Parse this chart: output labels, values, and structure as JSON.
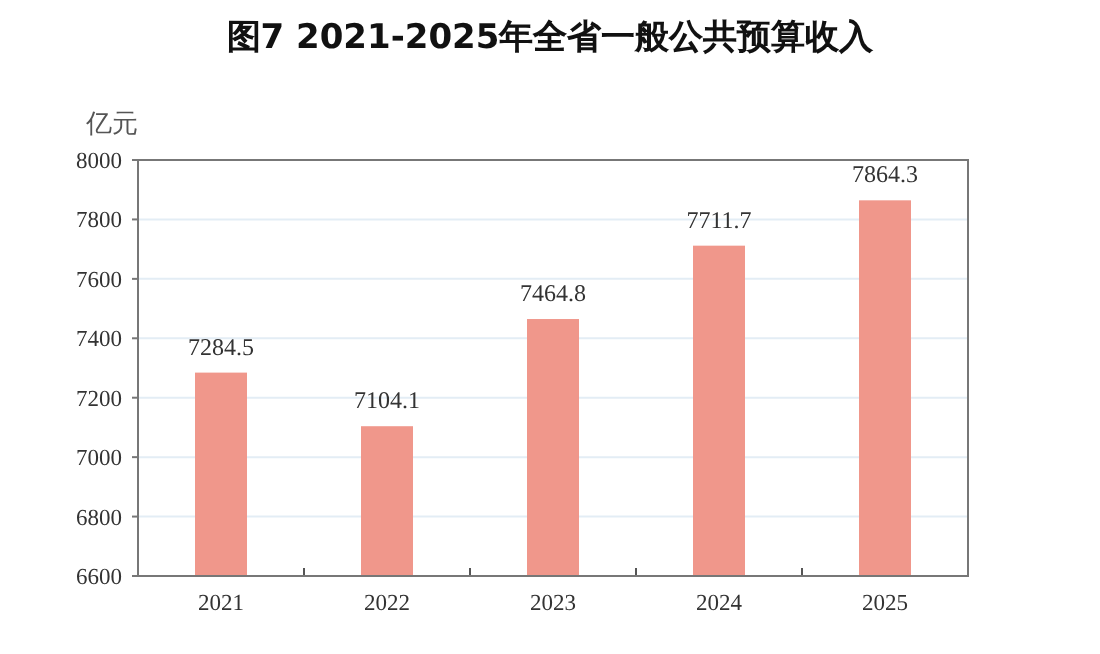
{
  "chart_data": {
    "type": "bar",
    "title": "图7 2021-2025年全省一般公共预算收入",
    "ylabel": "亿元",
    "categories": [
      "2021",
      "2022",
      "2023",
      "2024",
      "2025"
    ],
    "values": [
      7284.5,
      7104.1,
      7464.8,
      7711.7,
      7864.3
    ],
    "color": "#f0978b",
    "ylim": [
      6600,
      8000
    ],
    "yticks": [
      6600,
      6800,
      7000,
      7200,
      7400,
      7600,
      7800,
      8000
    ],
    "grid": "y",
    "data_labels": true
  }
}
